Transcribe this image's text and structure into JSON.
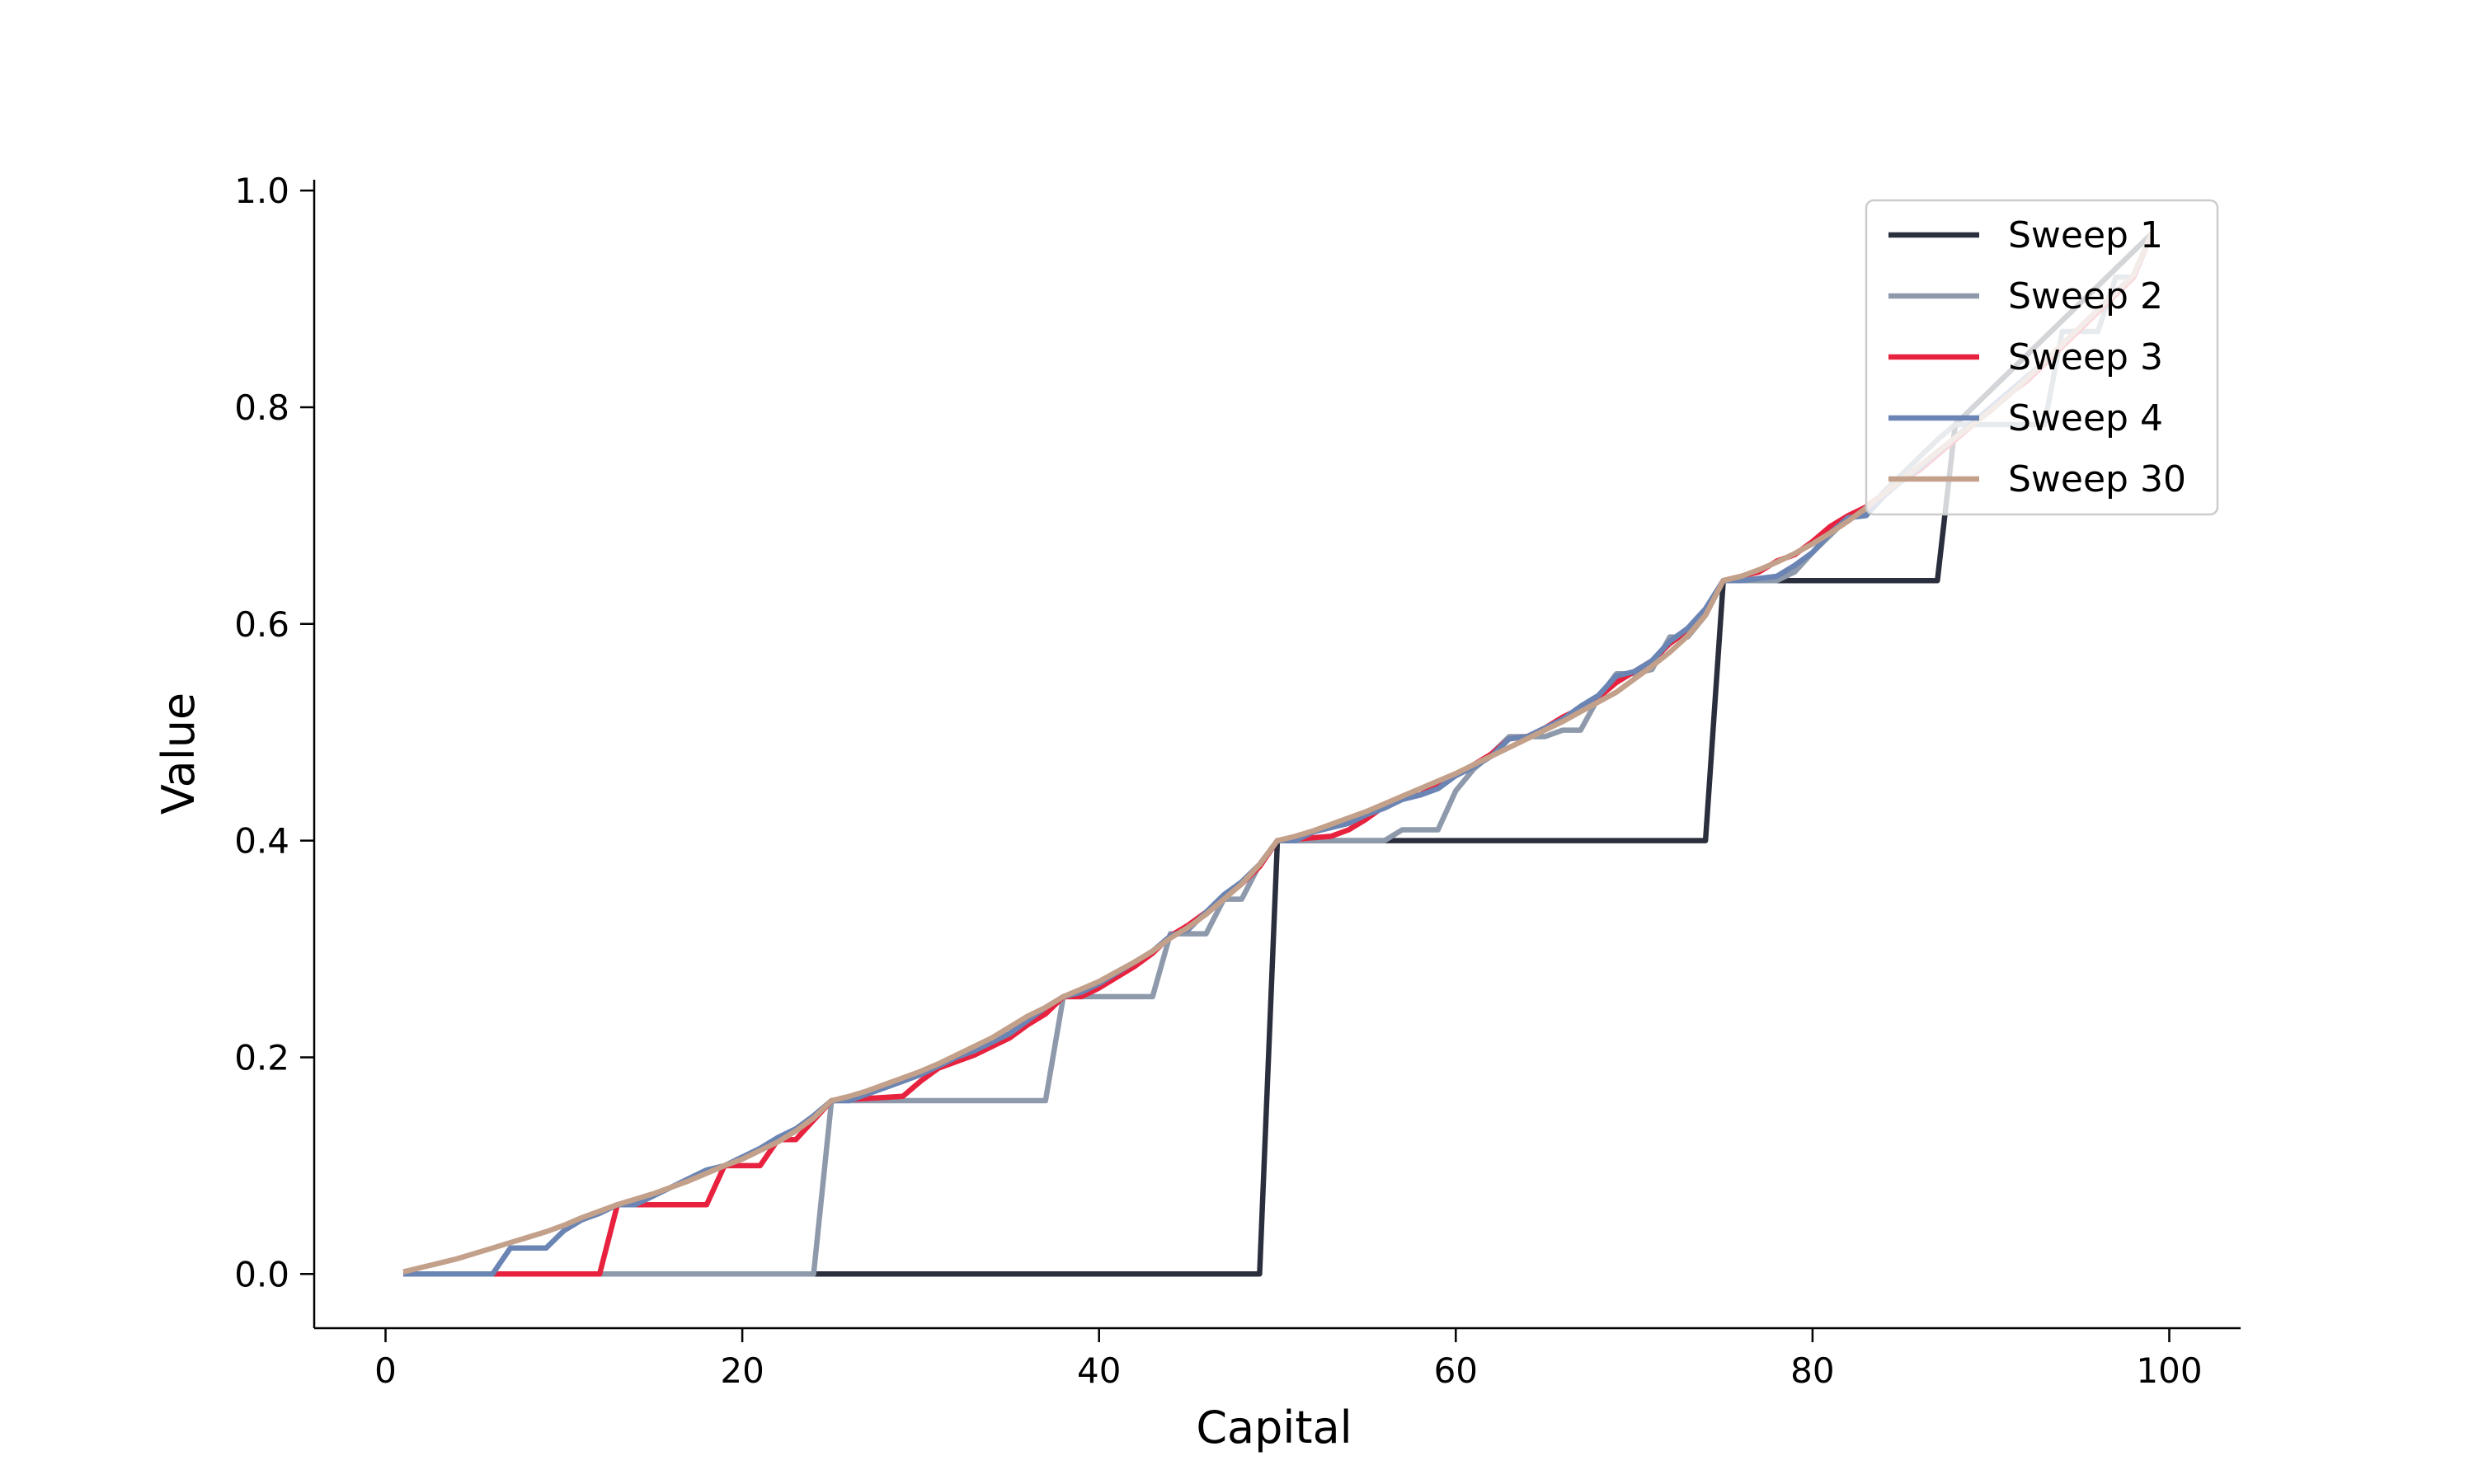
{
  "chart_data": {
    "type": "line",
    "title": "",
    "xlabel": "Capital",
    "ylabel": "Value",
    "xlim": [
      -4,
      104
    ],
    "ylim": [
      -0.05,
      1.01
    ],
    "xticks": [
      0,
      20,
      40,
      60,
      80,
      100
    ],
    "xtick_labels": [
      "0",
      "20",
      "40",
      "60",
      "80",
      "100"
    ],
    "yticks": [
      0.0,
      0.2,
      0.4,
      0.6,
      0.8,
      1.0
    ],
    "ytick_labels": [
      "0.0",
      "0.2",
      "0.4",
      "0.6",
      "0.8",
      "1.0"
    ],
    "grid": false,
    "legend_position": "top-right",
    "series": [
      {
        "name": "Sweep 1",
        "color": "#2b2f3d",
        "x": [
          1,
          49,
          50,
          74,
          75,
          87,
          88,
          99
        ],
        "y": [
          0.0,
          0.0,
          0.4,
          0.4,
          0.64,
          0.64,
          0.784,
          0.96
        ]
      },
      {
        "name": "Sweep 2",
        "color": "#8e9aab",
        "x": [
          1,
          24,
          25,
          37,
          38,
          43,
          44,
          46,
          47,
          48,
          49,
          50,
          56,
          57,
          59,
          60,
          61,
          62,
          63,
          65,
          66,
          67,
          68,
          69,
          70,
          71,
          72,
          73,
          74,
          75,
          78,
          79,
          80,
          81,
          82,
          83,
          84,
          85,
          86,
          87,
          88,
          93,
          94,
          96,
          97,
          98,
          99
        ],
        "y": [
          0.0,
          0.0,
          0.16,
          0.16,
          0.256,
          0.256,
          0.314,
          0.314,
          0.346,
          0.346,
          0.378,
          0.4,
          0.4,
          0.41,
          0.41,
          0.446,
          0.466,
          0.48,
          0.496,
          0.496,
          0.502,
          0.502,
          0.532,
          0.554,
          0.554,
          0.558,
          0.588,
          0.588,
          0.608,
          0.64,
          0.64,
          0.648,
          0.666,
          0.682,
          0.698,
          0.702,
          0.722,
          0.738,
          0.754,
          0.77,
          0.784,
          0.784,
          0.87,
          0.87,
          0.92,
          0.92,
          0.96
        ]
      },
      {
        "name": "Sweep 3",
        "color": "#e8223e",
        "x": [
          1,
          6,
          12,
          13,
          18,
          19,
          21,
          22,
          23,
          24,
          25,
          29,
          30,
          31,
          32,
          33,
          34,
          35,
          36,
          37,
          38,
          39,
          40,
          41,
          42,
          43,
          44,
          45,
          46,
          47,
          48,
          49,
          50,
          53,
          54,
          55,
          56,
          57,
          58,
          59,
          60,
          61,
          62,
          63,
          64,
          65,
          66,
          67,
          68,
          69,
          70,
          71,
          72,
          73,
          74,
          75,
          76,
          77,
          78,
          79,
          80,
          81,
          82,
          83,
          84,
          85,
          86,
          87,
          88,
          89,
          90,
          91,
          92,
          93,
          94,
          95,
          96,
          97,
          98,
          99
        ],
        "y": [
          0.0,
          0.0,
          0.0,
          0.064,
          0.064,
          0.1,
          0.1,
          0.124,
          0.124,
          0.142,
          0.16,
          0.164,
          0.178,
          0.19,
          0.196,
          0.202,
          0.21,
          0.218,
          0.23,
          0.24,
          0.256,
          0.256,
          0.264,
          0.274,
          0.284,
          0.296,
          0.312,
          0.322,
          0.334,
          0.348,
          0.36,
          0.376,
          0.4,
          0.404,
          0.41,
          0.42,
          0.432,
          0.44,
          0.442,
          0.452,
          0.46,
          0.47,
          0.48,
          0.494,
          0.496,
          0.504,
          0.514,
          0.522,
          0.532,
          0.546,
          0.556,
          0.566,
          0.582,
          0.594,
          0.612,
          0.64,
          0.644,
          0.648,
          0.658,
          0.664,
          0.676,
          0.69,
          0.7,
          0.708,
          0.72,
          0.732,
          0.742,
          0.756,
          0.77,
          0.784,
          0.8,
          0.812,
          0.824,
          0.84,
          0.856,
          0.872,
          0.888,
          0.904,
          0.92,
          0.96
        ]
      },
      {
        "name": "Sweep 4",
        "color": "#6a84b3",
        "x": [
          1,
          6,
          7,
          9,
          10,
          11,
          12,
          13,
          14,
          15,
          16,
          17,
          18,
          19,
          20,
          21,
          22,
          23,
          24,
          25,
          26,
          27,
          28,
          29,
          30,
          31,
          32,
          33,
          34,
          35,
          36,
          37,
          38,
          39,
          40,
          41,
          42,
          43,
          44,
          45,
          46,
          47,
          48,
          49,
          50,
          51,
          52,
          53,
          54,
          55,
          56,
          57,
          58,
          59,
          60,
          61,
          62,
          63,
          64,
          65,
          66,
          67,
          68,
          69,
          70,
          71,
          72,
          73,
          74,
          75,
          76,
          77,
          78,
          79,
          80,
          81,
          82,
          83,
          84,
          85,
          86,
          87,
          88,
          89,
          90,
          91,
          92,
          93,
          94,
          95,
          96,
          97,
          98,
          99
        ],
        "y": [
          0.0,
          0.0,
          0.024,
          0.024,
          0.04,
          0.05,
          0.056,
          0.064,
          0.064,
          0.072,
          0.08,
          0.088,
          0.096,
          0.1,
          0.108,
          0.116,
          0.126,
          0.134,
          0.146,
          0.16,
          0.16,
          0.166,
          0.172,
          0.178,
          0.184,
          0.192,
          0.2,
          0.206,
          0.214,
          0.222,
          0.234,
          0.246,
          0.256,
          0.26,
          0.268,
          0.278,
          0.288,
          0.298,
          0.312,
          0.318,
          0.334,
          0.35,
          0.362,
          0.378,
          0.4,
          0.4,
          0.408,
          0.412,
          0.416,
          0.424,
          0.43,
          0.438,
          0.442,
          0.448,
          0.46,
          0.468,
          0.478,
          0.494,
          0.496,
          0.504,
          0.512,
          0.524,
          0.534,
          0.552,
          0.556,
          0.566,
          0.584,
          0.596,
          0.614,
          0.64,
          0.64,
          0.642,
          0.644,
          0.654,
          0.666,
          0.684,
          0.698,
          0.7,
          0.718,
          0.732,
          0.744,
          0.758,
          0.772,
          0.786,
          0.8,
          0.814,
          0.828,
          0.842,
          0.858,
          0.874,
          0.89,
          0.906,
          0.922,
          0.96
        ]
      },
      {
        "name": "Sweep 30",
        "color": "#c3a08a",
        "x": [
          1,
          2,
          3,
          4,
          5,
          6,
          7,
          8,
          9,
          10,
          11,
          12,
          13,
          14,
          15,
          16,
          17,
          18,
          19,
          20,
          21,
          22,
          23,
          24,
          25,
          26,
          27,
          28,
          29,
          30,
          31,
          32,
          33,
          34,
          35,
          36,
          37,
          38,
          39,
          40,
          41,
          42,
          43,
          44,
          45,
          46,
          47,
          48,
          49,
          50,
          51,
          52,
          53,
          54,
          55,
          56,
          57,
          58,
          59,
          60,
          61,
          62,
          63,
          64,
          65,
          66,
          67,
          68,
          69,
          70,
          71,
          72,
          73,
          74,
          75,
          76,
          77,
          78,
          79,
          80,
          81,
          82,
          83,
          84,
          85,
          86,
          87,
          88,
          89,
          90,
          91,
          92,
          93,
          94,
          95,
          96,
          97,
          98,
          99
        ],
        "y": [
          0.002,
          0.006,
          0.01,
          0.014,
          0.019,
          0.024,
          0.029,
          0.034,
          0.039,
          0.045,
          0.052,
          0.058,
          0.064,
          0.069,
          0.074,
          0.08,
          0.086,
          0.093,
          0.1,
          0.106,
          0.114,
          0.122,
          0.132,
          0.144,
          0.16,
          0.164,
          0.169,
          0.175,
          0.181,
          0.187,
          0.194,
          0.202,
          0.21,
          0.218,
          0.228,
          0.238,
          0.246,
          0.256,
          0.263,
          0.27,
          0.279,
          0.288,
          0.298,
          0.31,
          0.32,
          0.332,
          0.346,
          0.36,
          0.378,
          0.4,
          0.404,
          0.409,
          0.415,
          0.421,
          0.427,
          0.434,
          0.441,
          0.448,
          0.455,
          0.462,
          0.47,
          0.478,
          0.486,
          0.494,
          0.502,
          0.51,
          0.519,
          0.528,
          0.537,
          0.549,
          0.561,
          0.574,
          0.589,
          0.608,
          0.64,
          0.644,
          0.65,
          0.657,
          0.665,
          0.674,
          0.684,
          0.695,
          0.707,
          0.72,
          0.733,
          0.746,
          0.759,
          0.772,
          0.784,
          0.797,
          0.811,
          0.826,
          0.842,
          0.858,
          0.874,
          0.89,
          0.906,
          0.922,
          0.96
        ]
      }
    ]
  }
}
